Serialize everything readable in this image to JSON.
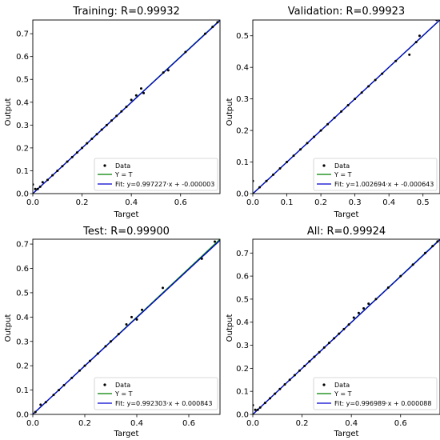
{
  "figure": {
    "colors": {
      "data": "#000000",
      "identity": "#008000",
      "fit": "#0000cd",
      "frame": "#000000"
    }
  },
  "chart_data": [
    {
      "type": "scatter",
      "title": "Training: R=0.99932",
      "xlabel": "Target",
      "ylabel": "Output",
      "xlim": [
        0,
        0.76
      ],
      "ylim": [
        0,
        0.76
      ],
      "xticks": [
        0.0,
        0.2,
        0.4,
        0.6
      ],
      "yticks": [
        0.0,
        0.1,
        0.2,
        0.3,
        0.4,
        0.5,
        0.6,
        0.7
      ],
      "x_tick_labels": [
        "0.0",
        "0.2",
        "0.4",
        "0.6"
      ],
      "y_tick_labels": [
        "0.0",
        "0.1",
        "0.2",
        "0.3",
        "0.4",
        "0.5",
        "0.6",
        "0.7"
      ],
      "legend": {
        "position": "lower-right",
        "entries": [
          "Data",
          "Y = T",
          "Fit: y=0.997227·x + -0.000003"
        ]
      },
      "fit": {
        "slope": 0.997227,
        "intercept": -3e-06
      },
      "points": [
        [
          0.0,
          0.0
        ],
        [
          0.0,
          0.04
        ],
        [
          0.01,
          0.02
        ],
        [
          0.02,
          0.02
        ],
        [
          0.03,
          0.03
        ],
        [
          0.04,
          0.05
        ],
        [
          0.06,
          0.06
        ],
        [
          0.08,
          0.08
        ],
        [
          0.1,
          0.1
        ],
        [
          0.12,
          0.12
        ],
        [
          0.14,
          0.14
        ],
        [
          0.16,
          0.16
        ],
        [
          0.18,
          0.18
        ],
        [
          0.2,
          0.2
        ],
        [
          0.22,
          0.22
        ],
        [
          0.24,
          0.24
        ],
        [
          0.26,
          0.26
        ],
        [
          0.28,
          0.28
        ],
        [
          0.3,
          0.3
        ],
        [
          0.32,
          0.32
        ],
        [
          0.34,
          0.34
        ],
        [
          0.36,
          0.36
        ],
        [
          0.38,
          0.38
        ],
        [
          0.4,
          0.41
        ],
        [
          0.42,
          0.43
        ],
        [
          0.44,
          0.46
        ],
        [
          0.45,
          0.44
        ],
        [
          0.53,
          0.53
        ],
        [
          0.55,
          0.54
        ],
        [
          0.62,
          0.62
        ],
        [
          0.7,
          0.7
        ],
        [
          0.73,
          0.73
        ],
        [
          0.75,
          0.75
        ]
      ]
    },
    {
      "type": "scatter",
      "title": "Validation: R=0.99923",
      "xlabel": "Target",
      "ylabel": "Output",
      "xlim": [
        0,
        0.55
      ],
      "ylim": [
        0,
        0.55
      ],
      "xticks": [
        0.0,
        0.1,
        0.2,
        0.3,
        0.4,
        0.5
      ],
      "yticks": [
        0.0,
        0.1,
        0.2,
        0.3,
        0.4,
        0.5
      ],
      "x_tick_labels": [
        "0.0",
        "0.1",
        "0.2",
        "0.3",
        "0.4",
        "0.5"
      ],
      "y_tick_labels": [
        "0.0",
        "0.1",
        "0.2",
        "0.3",
        "0.4",
        "0.5"
      ],
      "legend": {
        "position": "lower-right",
        "entries": [
          "Data",
          "Y = T",
          "Fit: y=1.002694·x + -0.000643"
        ]
      },
      "fit": {
        "slope": 1.002694,
        "intercept": -0.000643
      },
      "points": [
        [
          0.0,
          0.0
        ],
        [
          0.0,
          0.04
        ],
        [
          0.02,
          0.02
        ],
        [
          0.04,
          0.04
        ],
        [
          0.06,
          0.06
        ],
        [
          0.08,
          0.08
        ],
        [
          0.1,
          0.1
        ],
        [
          0.12,
          0.12
        ],
        [
          0.14,
          0.14
        ],
        [
          0.16,
          0.16
        ],
        [
          0.18,
          0.18
        ],
        [
          0.2,
          0.2
        ],
        [
          0.22,
          0.22
        ],
        [
          0.24,
          0.24
        ],
        [
          0.26,
          0.26
        ],
        [
          0.28,
          0.28
        ],
        [
          0.3,
          0.3
        ],
        [
          0.32,
          0.32
        ],
        [
          0.34,
          0.34
        ],
        [
          0.36,
          0.36
        ],
        [
          0.38,
          0.38
        ],
        [
          0.42,
          0.42
        ],
        [
          0.46,
          0.44
        ],
        [
          0.48,
          0.48
        ],
        [
          0.49,
          0.5
        ],
        [
          0.54,
          0.55
        ]
      ]
    },
    {
      "type": "scatter",
      "title": "Test: R=0.99900",
      "xlabel": "Target",
      "ylabel": "Output",
      "xlim": [
        0,
        0.72
      ],
      "ylim": [
        0,
        0.72
      ],
      "xticks": [
        0.0,
        0.2,
        0.4,
        0.6
      ],
      "yticks": [
        0.0,
        0.1,
        0.2,
        0.3,
        0.4,
        0.5,
        0.6,
        0.7
      ],
      "x_tick_labels": [
        "0.0",
        "0.2",
        "0.4",
        "0.6"
      ],
      "y_tick_labels": [
        "0.0",
        "0.1",
        "0.2",
        "0.3",
        "0.4",
        "0.5",
        "0.6",
        "0.7"
      ],
      "legend": {
        "position": "lower-right",
        "entries": [
          "Data",
          "Y = T",
          "Fit: y=0.992303·x + 0.000843"
        ]
      },
      "fit": {
        "slope": 0.992303,
        "intercept": 0.000843
      },
      "points": [
        [
          0.01,
          0.01
        ],
        [
          0.03,
          0.04
        ],
        [
          0.05,
          0.05
        ],
        [
          0.08,
          0.08
        ],
        [
          0.1,
          0.1
        ],
        [
          0.12,
          0.12
        ],
        [
          0.15,
          0.15
        ],
        [
          0.18,
          0.18
        ],
        [
          0.2,
          0.2
        ],
        [
          0.22,
          0.22
        ],
        [
          0.25,
          0.25
        ],
        [
          0.28,
          0.28
        ],
        [
          0.3,
          0.3
        ],
        [
          0.33,
          0.33
        ],
        [
          0.36,
          0.37
        ],
        [
          0.38,
          0.4
        ],
        [
          0.4,
          0.39
        ],
        [
          0.42,
          0.43
        ],
        [
          0.5,
          0.52
        ],
        [
          0.65,
          0.64
        ],
        [
          0.7,
          0.71
        ]
      ]
    },
    {
      "type": "scatter",
      "title": "All: R=0.99924",
      "xlabel": "Target",
      "ylabel": "Output",
      "xlim": [
        0,
        0.76
      ],
      "ylim": [
        0,
        0.76
      ],
      "xticks": [
        0.0,
        0.2,
        0.4,
        0.6
      ],
      "yticks": [
        0.0,
        0.1,
        0.2,
        0.3,
        0.4,
        0.5,
        0.6,
        0.7
      ],
      "x_tick_labels": [
        "0.0",
        "0.2",
        "0.4",
        "0.6"
      ],
      "y_tick_labels": [
        "0.0",
        "0.1",
        "0.2",
        "0.3",
        "0.4",
        "0.5",
        "0.6",
        "0.7"
      ],
      "legend": {
        "position": "lower-right",
        "entries": [
          "Data",
          "Y = T",
          "Fit: y=0.996989·x + 0.000088"
        ]
      },
      "fit": {
        "slope": 0.996989,
        "intercept": 8.8e-05
      },
      "points": [
        [
          0.0,
          0.0
        ],
        [
          0.0,
          0.04
        ],
        [
          0.01,
          0.02
        ],
        [
          0.02,
          0.02
        ],
        [
          0.03,
          0.03
        ],
        [
          0.05,
          0.05
        ],
        [
          0.07,
          0.07
        ],
        [
          0.09,
          0.09
        ],
        [
          0.11,
          0.11
        ],
        [
          0.13,
          0.13
        ],
        [
          0.15,
          0.15
        ],
        [
          0.17,
          0.17
        ],
        [
          0.19,
          0.19
        ],
        [
          0.21,
          0.21
        ],
        [
          0.23,
          0.23
        ],
        [
          0.25,
          0.25
        ],
        [
          0.27,
          0.27
        ],
        [
          0.29,
          0.29
        ],
        [
          0.31,
          0.31
        ],
        [
          0.33,
          0.33
        ],
        [
          0.35,
          0.35
        ],
        [
          0.37,
          0.37
        ],
        [
          0.39,
          0.39
        ],
        [
          0.41,
          0.42
        ],
        [
          0.43,
          0.44
        ],
        [
          0.45,
          0.46
        ],
        [
          0.47,
          0.48
        ],
        [
          0.5,
          0.5
        ],
        [
          0.55,
          0.55
        ],
        [
          0.6,
          0.6
        ],
        [
          0.65,
          0.65
        ],
        [
          0.7,
          0.7
        ],
        [
          0.73,
          0.73
        ],
        [
          0.75,
          0.75
        ]
      ]
    }
  ]
}
